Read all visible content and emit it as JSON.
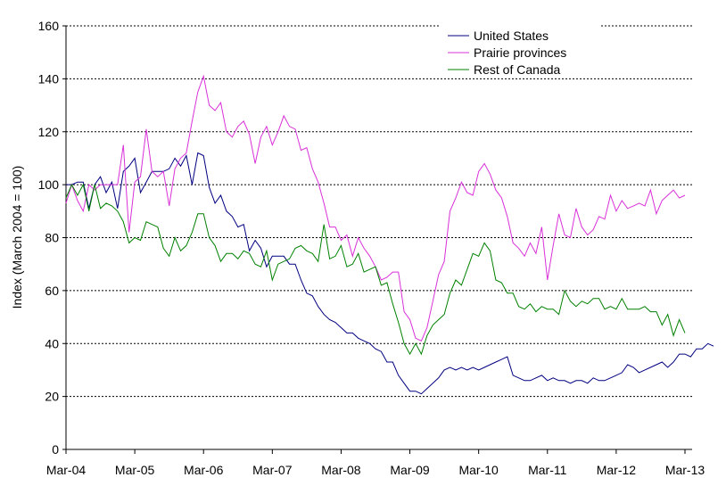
{
  "chart_data": {
    "type": "line",
    "title": "",
    "xlabel": "",
    "ylabel": "Index (March 2004 = 100)",
    "ylim": [
      0,
      160
    ],
    "y_ticks": [
      "0",
      "20",
      "40",
      "60",
      "80",
      "100",
      "120",
      "140",
      "160"
    ],
    "x_ticks": [
      "Mar-04",
      "Mar-05",
      "Mar-06",
      "Mar-07",
      "Mar-08",
      "Mar-09",
      "Mar-10",
      "Mar-11",
      "Mar-12",
      "Mar-13"
    ],
    "grid": "horizontal dashed",
    "legend_position": "top-right",
    "x_unit": "months since Mar-04",
    "series": [
      {
        "name": "United States",
        "color": "#000080",
        "points": [
          [
            0,
            100
          ],
          [
            1,
            100
          ],
          [
            2,
            101
          ],
          [
            3,
            101
          ],
          [
            4,
            91
          ],
          [
            5,
            100
          ],
          [
            6,
            103
          ],
          [
            7,
            97
          ],
          [
            8,
            101
          ],
          [
            9,
            91
          ],
          [
            10,
            105
          ],
          [
            11,
            107
          ],
          [
            12,
            110
          ],
          [
            13,
            97
          ],
          [
            14,
            101
          ],
          [
            15,
            105
          ],
          [
            16,
            105
          ],
          [
            17,
            105
          ],
          [
            18,
            106
          ],
          [
            19,
            110
          ],
          [
            20,
            107
          ],
          [
            21,
            111
          ],
          [
            22,
            100
          ],
          [
            23,
            112
          ],
          [
            24,
            111
          ],
          [
            25,
            99
          ],
          [
            26,
            93
          ],
          [
            27,
            96
          ],
          [
            28,
            90
          ],
          [
            29,
            88
          ],
          [
            30,
            84
          ],
          [
            31,
            85
          ],
          [
            32,
            75
          ],
          [
            33,
            79
          ],
          [
            34,
            76
          ],
          [
            35,
            69
          ],
          [
            36,
            73
          ],
          [
            37,
            73
          ],
          [
            38,
            73
          ],
          [
            39,
            70
          ],
          [
            40,
            70
          ],
          [
            41,
            64
          ],
          [
            42,
            59
          ],
          [
            43,
            58
          ],
          [
            44,
            54
          ],
          [
            45,
            51
          ],
          [
            46,
            49
          ],
          [
            47,
            48
          ],
          [
            48,
            46
          ],
          [
            49,
            44
          ],
          [
            50,
            44
          ],
          [
            51,
            42
          ],
          [
            52,
            41
          ],
          [
            53,
            40
          ],
          [
            54,
            38
          ],
          [
            55,
            37
          ],
          [
            56,
            33
          ],
          [
            57,
            33
          ],
          [
            58,
            28
          ],
          [
            59,
            25
          ],
          [
            60,
            22
          ],
          [
            61,
            22
          ],
          [
            62,
            21
          ],
          [
            63,
            23
          ],
          [
            64,
            25
          ],
          [
            65,
            27
          ],
          [
            66,
            30
          ],
          [
            67,
            31
          ],
          [
            68,
            30
          ],
          [
            69,
            31
          ],
          [
            70,
            30
          ],
          [
            71,
            31
          ],
          [
            72,
            30
          ],
          [
            73,
            31
          ],
          [
            74,
            32
          ],
          [
            75,
            33
          ],
          [
            76,
            34
          ],
          [
            77,
            35
          ],
          [
            78,
            28
          ],
          [
            79,
            27
          ],
          [
            80,
            26
          ],
          [
            81,
            26
          ],
          [
            82,
            27
          ],
          [
            83,
            28
          ],
          [
            84,
            26
          ],
          [
            85,
            27
          ],
          [
            86,
            26
          ],
          [
            87,
            26
          ],
          [
            88,
            25
          ],
          [
            89,
            26
          ],
          [
            90,
            26
          ],
          [
            91,
            25
          ],
          [
            92,
            27
          ],
          [
            93,
            26
          ],
          [
            94,
            26
          ],
          [
            95,
            27
          ],
          [
            96,
            28
          ],
          [
            97,
            29
          ],
          [
            98,
            32
          ],
          [
            99,
            31
          ],
          [
            100,
            29
          ],
          [
            101,
            30
          ],
          [
            102,
            31
          ],
          [
            103,
            32
          ],
          [
            104,
            33
          ],
          [
            105,
            31
          ],
          [
            106,
            33
          ],
          [
            107,
            36
          ],
          [
            108,
            36
          ],
          [
            109,
            35
          ],
          [
            110,
            38
          ],
          [
            111,
            38
          ],
          [
            112,
            40
          ],
          [
            113,
            39
          ]
        ]
      },
      {
        "name": "Prairie provinces",
        "color": "#d930d9",
        "points": [
          [
            0,
            93
          ],
          [
            1,
            100
          ],
          [
            2,
            94
          ],
          [
            3,
            90
          ],
          [
            4,
            100
          ],
          [
            5,
            98
          ],
          [
            6,
            100
          ],
          [
            7,
            100
          ],
          [
            8,
            100
          ],
          [
            9,
            100
          ],
          [
            10,
            115
          ],
          [
            11,
            82
          ],
          [
            12,
            101
          ],
          [
            13,
            103
          ],
          [
            14,
            121
          ],
          [
            15,
            105
          ],
          [
            16,
            103
          ],
          [
            17,
            105
          ],
          [
            18,
            92
          ],
          [
            19,
            106
          ],
          [
            20,
            110
          ],
          [
            21,
            112
          ],
          [
            22,
            124
          ],
          [
            23,
            135
          ],
          [
            24,
            141
          ],
          [
            25,
            130
          ],
          [
            26,
            128
          ],
          [
            27,
            131
          ],
          [
            28,
            120
          ],
          [
            29,
            118
          ],
          [
            30,
            122
          ],
          [
            31,
            124
          ],
          [
            32,
            119
          ],
          [
            33,
            108
          ],
          [
            34,
            118
          ],
          [
            35,
            122
          ],
          [
            36,
            115
          ],
          [
            37,
            120
          ],
          [
            38,
            126
          ],
          [
            39,
            122
          ],
          [
            40,
            121
          ],
          [
            41,
            113
          ],
          [
            42,
            114
          ],
          [
            43,
            106
          ],
          [
            44,
            101
          ],
          [
            45,
            93
          ],
          [
            46,
            84
          ],
          [
            47,
            84
          ],
          [
            48,
            79
          ],
          [
            49,
            81
          ],
          [
            50,
            73
          ],
          [
            51,
            80
          ],
          [
            52,
            76
          ],
          [
            53,
            73
          ],
          [
            54,
            69
          ],
          [
            55,
            64
          ],
          [
            56,
            65
          ],
          [
            57,
            67
          ],
          [
            58,
            67
          ],
          [
            59,
            52
          ],
          [
            60,
            49
          ],
          [
            61,
            42
          ],
          [
            62,
            41
          ],
          [
            63,
            46
          ],
          [
            64,
            56
          ],
          [
            65,
            66
          ],
          [
            66,
            71
          ],
          [
            67,
            90
          ],
          [
            68,
            95
          ],
          [
            69,
            101
          ],
          [
            70,
            97
          ],
          [
            71,
            96
          ],
          [
            72,
            105
          ],
          [
            73,
            108
          ],
          [
            74,
            104
          ],
          [
            75,
            98
          ],
          [
            76,
            95
          ],
          [
            77,
            88
          ],
          [
            78,
            78
          ],
          [
            79,
            76
          ],
          [
            80,
            73
          ],
          [
            81,
            78
          ],
          [
            82,
            74
          ],
          [
            83,
            84
          ],
          [
            84,
            64
          ],
          [
            85,
            77
          ],
          [
            86,
            89
          ],
          [
            87,
            81
          ],
          [
            88,
            80
          ],
          [
            89,
            91
          ],
          [
            90,
            84
          ],
          [
            91,
            81
          ],
          [
            92,
            83
          ],
          [
            93,
            88
          ],
          [
            94,
            87
          ],
          [
            95,
            96
          ],
          [
            96,
            90
          ],
          [
            97,
            94
          ],
          [
            98,
            91
          ],
          [
            99,
            92
          ],
          [
            100,
            93
          ],
          [
            101,
            92
          ],
          [
            102,
            98
          ],
          [
            103,
            89
          ],
          [
            104,
            94
          ],
          [
            105,
            96
          ],
          [
            106,
            98
          ],
          [
            107,
            95
          ],
          [
            108,
            96
          ]
        ]
      },
      {
        "name": "Rest of Canada",
        "color": "#008000",
        "points": [
          [
            0,
            95
          ],
          [
            1,
            100
          ],
          [
            2,
            96
          ],
          [
            3,
            100
          ],
          [
            4,
            90
          ],
          [
            5,
            100
          ],
          [
            6,
            91
          ],
          [
            7,
            93
          ],
          [
            8,
            92
          ],
          [
            9,
            90
          ],
          [
            10,
            86
          ],
          [
            11,
            78
          ],
          [
            12,
            80
          ],
          [
            13,
            79
          ],
          [
            14,
            86
          ],
          [
            15,
            85
          ],
          [
            16,
            84
          ],
          [
            17,
            76
          ],
          [
            18,
            73
          ],
          [
            19,
            80
          ],
          [
            20,
            75
          ],
          [
            21,
            77
          ],
          [
            22,
            82
          ],
          [
            23,
            89
          ],
          [
            24,
            89
          ],
          [
            25,
            80
          ],
          [
            26,
            77
          ],
          [
            27,
            71
          ],
          [
            28,
            74
          ],
          [
            29,
            74
          ],
          [
            30,
            72
          ],
          [
            31,
            75
          ],
          [
            32,
            74
          ],
          [
            33,
            70
          ],
          [
            34,
            69
          ],
          [
            35,
            75
          ],
          [
            36,
            64
          ],
          [
            37,
            70
          ],
          [
            38,
            71
          ],
          [
            39,
            72
          ],
          [
            40,
            76
          ],
          [
            41,
            77
          ],
          [
            42,
            75
          ],
          [
            43,
            74
          ],
          [
            44,
            71
          ],
          [
            45,
            85
          ],
          [
            46,
            72
          ],
          [
            47,
            73
          ],
          [
            48,
            77
          ],
          [
            49,
            69
          ],
          [
            50,
            70
          ],
          [
            51,
            74
          ],
          [
            52,
            67
          ],
          [
            53,
            68
          ],
          [
            54,
            69
          ],
          [
            55,
            62
          ],
          [
            56,
            63
          ],
          [
            57,
            55
          ],
          [
            58,
            48
          ],
          [
            59,
            40
          ],
          [
            60,
            36
          ],
          [
            61,
            40
          ],
          [
            62,
            36
          ],
          [
            63,
            43
          ],
          [
            64,
            47
          ],
          [
            65,
            49
          ],
          [
            66,
            51
          ],
          [
            67,
            59
          ],
          [
            68,
            64
          ],
          [
            69,
            62
          ],
          [
            70,
            68
          ],
          [
            71,
            74
          ],
          [
            72,
            73
          ],
          [
            73,
            78
          ],
          [
            74,
            75
          ],
          [
            75,
            64
          ],
          [
            76,
            63
          ],
          [
            77,
            59
          ],
          [
            78,
            59
          ],
          [
            79,
            54
          ],
          [
            80,
            53
          ],
          [
            81,
            55
          ],
          [
            82,
            52
          ],
          [
            83,
            54
          ],
          [
            84,
            53
          ],
          [
            85,
            53
          ],
          [
            86,
            51
          ],
          [
            87,
            60
          ],
          [
            88,
            56
          ],
          [
            89,
            54
          ],
          [
            90,
            56
          ],
          [
            91,
            55
          ],
          [
            92,
            57
          ],
          [
            93,
            57
          ],
          [
            94,
            53
          ],
          [
            95,
            54
          ],
          [
            96,
            53
          ],
          [
            97,
            57
          ],
          [
            98,
            53
          ],
          [
            99,
            53
          ],
          [
            100,
            53
          ],
          [
            101,
            54
          ],
          [
            102,
            52
          ],
          [
            103,
            52
          ],
          [
            104,
            47
          ],
          [
            105,
            51
          ],
          [
            106,
            43
          ],
          [
            107,
            49
          ],
          [
            108,
            44
          ]
        ]
      }
    ]
  }
}
